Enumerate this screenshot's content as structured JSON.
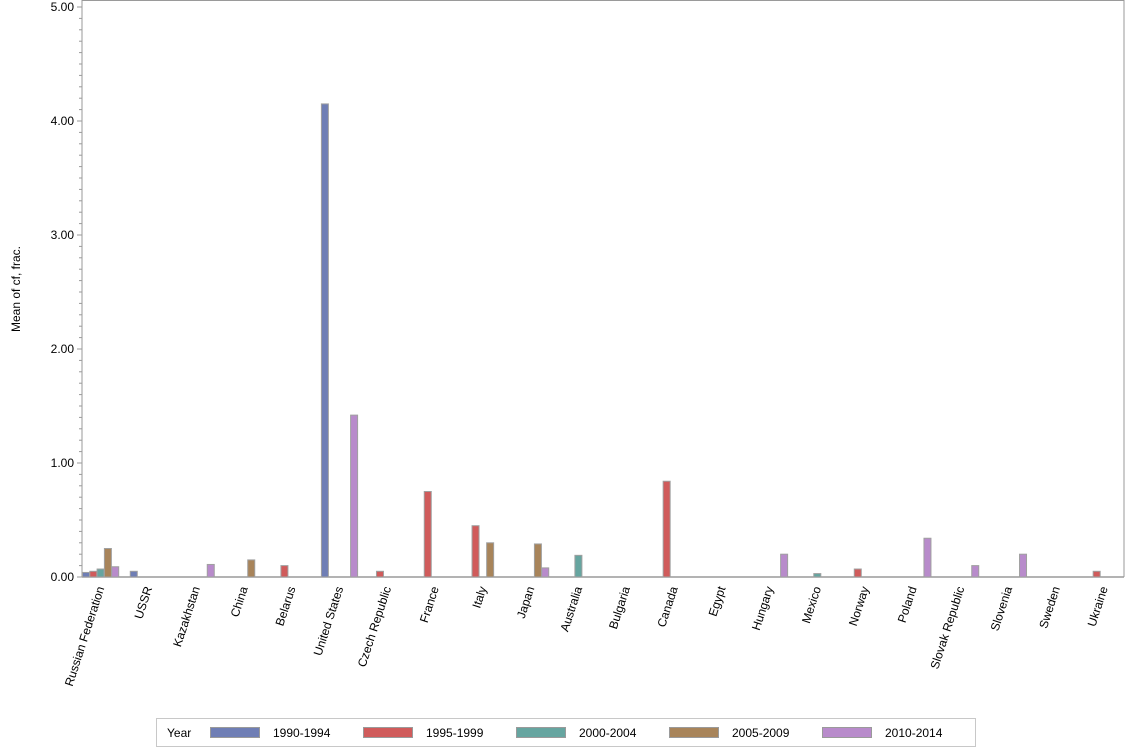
{
  "chart_data": {
    "type": "bar",
    "title": "",
    "xlabel": "",
    "ylabel": "Mean of cf, frac.",
    "ylim": [
      0,
      5
    ],
    "yticks": [
      "0.00",
      "1.00",
      "2.00",
      "3.00",
      "4.00",
      "5.00"
    ],
    "grid": false,
    "legend_position": "bottom",
    "legend_title": "Year",
    "categories": [
      "Russian Federation",
      "USSR",
      "Kazakhstan",
      "China",
      "Belarus",
      "United States",
      "Czech Republic",
      "France",
      "Italy",
      "Japan",
      "Australia",
      "Bulgaria",
      "Canada",
      "Egypt",
      "Hungary",
      "Mexico",
      "Norway",
      "Poland",
      "Slovak Republic",
      "Slovenia",
      "Sweden",
      "Ukraine"
    ],
    "series": [
      {
        "name": "1990-1994",
        "color": "#6f7eb5",
        "values": [
          0.04,
          0.05,
          null,
          null,
          null,
          4.15,
          null,
          null,
          null,
          null,
          null,
          null,
          null,
          null,
          null,
          null,
          null,
          null,
          null,
          null,
          null,
          null
        ]
      },
      {
        "name": "1995-1999",
        "color": "#d05b5b",
        "values": [
          0.05,
          null,
          null,
          null,
          0.1,
          null,
          0.05,
          0.75,
          0.45,
          null,
          null,
          null,
          0.84,
          null,
          null,
          null,
          0.07,
          null,
          null,
          null,
          null,
          0.05
        ]
      },
      {
        "name": "2000-2004",
        "color": "#66a5a0",
        "values": [
          0.07,
          null,
          null,
          null,
          null,
          null,
          null,
          null,
          null,
          null,
          0.19,
          null,
          null,
          null,
          null,
          0.03,
          null,
          null,
          null,
          null,
          null,
          null
        ]
      },
      {
        "name": "2005-2009",
        "color": "#a8845a",
        "values": [
          0.25,
          null,
          null,
          0.15,
          null,
          null,
          null,
          null,
          0.3,
          0.29,
          null,
          null,
          null,
          null,
          null,
          null,
          null,
          null,
          null,
          null,
          null,
          null
        ]
      },
      {
        "name": "2010-2014",
        "color": "#b88bcb",
        "values": [
          0.09,
          null,
          0.11,
          null,
          null,
          1.42,
          null,
          null,
          null,
          0.08,
          null,
          null,
          null,
          null,
          0.2,
          null,
          null,
          0.34,
          0.1,
          0.2,
          null,
          null
        ]
      }
    ]
  }
}
